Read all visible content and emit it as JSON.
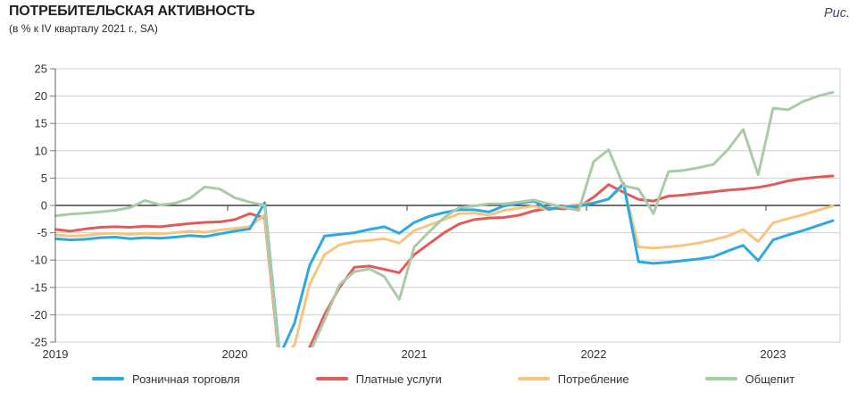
{
  "header": {
    "title": "ПОТРЕБИТЕЛЬСКАЯ АКТИВНОСТЬ",
    "subtitle": "(в % к IV кварталу 2021 г., SA)",
    "figure_label": "Рис."
  },
  "chart_data": {
    "type": "line",
    "title": "ПОТРЕБИТЕЛЬСКАЯ АКТИВНОСТЬ",
    "subtitle": "(в % к IV кварталу 2021 г., SA)",
    "x_unit": "month",
    "months_start": "2019-01",
    "months_end": "2023-05",
    "x_tick_labels": [
      "2019",
      "2020",
      "2021",
      "2022",
      "2023"
    ],
    "x_tick_month_indices": [
      0,
      12,
      24,
      36,
      48
    ],
    "ylim": [
      -25,
      25
    ],
    "y_tick_step": 5,
    "grid": true,
    "legend_position": "bottom",
    "zero_line": true,
    "series": [
      {
        "name": "Розничная торговля",
        "color": "#2BA9E0",
        "values": [
          -6.1,
          -6.3,
          -6.2,
          -5.9,
          -5.8,
          -6.1,
          -5.9,
          -6.0,
          -5.8,
          -5.5,
          -5.7,
          -5.2,
          -4.7,
          -4.3,
          0.5,
          -27.5,
          -21.5,
          -11.0,
          -5.6,
          -5.3,
          -5.0,
          -4.4,
          -3.9,
          -5.1,
          -3.1,
          -2.0,
          -1.3,
          -0.8,
          -0.8,
          -1.2,
          -0.1,
          0.4,
          0.8,
          -0.7,
          -0.3,
          -0.1,
          0.4,
          1.2,
          4.0,
          -10.3,
          -10.6,
          -10.4,
          -10.1,
          -9.8,
          -9.4,
          -8.3,
          -7.3,
          -10.1,
          -6.3,
          -5.4,
          -4.6,
          -3.7,
          -2.8
        ]
      },
      {
        "name": "Платные услуги",
        "color": "#E25B5B",
        "values": [
          -4.4,
          -4.7,
          -4.3,
          -4.0,
          -3.9,
          -4.0,
          -3.8,
          -3.9,
          -3.6,
          -3.3,
          -3.1,
          -3.0,
          -2.6,
          -1.5,
          -2.3,
          -29.0,
          -29.0,
          -26.0,
          -20.0,
          -15.0,
          -11.3,
          -11.1,
          -11.7,
          -12.3,
          -9.0,
          -7.0,
          -5.0,
          -3.4,
          -2.6,
          -2.3,
          -2.2,
          -1.8,
          -1.0,
          -0.5,
          -0.6,
          -0.3,
          1.5,
          3.8,
          2.4,
          1.1,
          0.8,
          1.7,
          1.9,
          2.2,
          2.5,
          2.8,
          3.0,
          3.3,
          3.8,
          4.5,
          4.9,
          5.2,
          5.4
        ]
      },
      {
        "name": "Потребление",
        "color": "#F7C57E",
        "values": [
          -5.4,
          -5.6,
          -5.5,
          -5.2,
          -5.1,
          -5.3,
          -5.1,
          -5.2,
          -5.0,
          -4.7,
          -4.9,
          -4.5,
          -4.2,
          -3.9,
          -1.7,
          -28.5,
          -25.5,
          -14.5,
          -9.0,
          -7.2,
          -6.6,
          -6.4,
          -6.1,
          -6.9,
          -4.6,
          -3.6,
          -2.6,
          -1.5,
          -1.4,
          -1.8,
          -0.9,
          -0.5,
          -0.1,
          -0.8,
          -0.2,
          0.2,
          0.5,
          1.1,
          3.7,
          -7.6,
          -7.8,
          -7.6,
          -7.3,
          -6.9,
          -6.3,
          -5.6,
          -4.4,
          -6.6,
          -3.2,
          -2.4,
          -1.7,
          -0.9,
          -0.1
        ]
      },
      {
        "name": "Общепит",
        "color": "#A9CBA6",
        "values": [
          -1.9,
          -1.6,
          -1.4,
          -1.2,
          -0.9,
          -0.4,
          0.9,
          0.1,
          0.4,
          1.3,
          3.4,
          3.0,
          1.4,
          0.6,
          0.0,
          -28.0,
          -30.0,
          -27.0,
          -21.0,
          -14.5,
          -12.1,
          -11.6,
          -13.0,
          -17.2,
          -7.6,
          -4.8,
          -2.2,
          -0.4,
          -0.1,
          0.3,
          0.3,
          0.6,
          1.0,
          0.3,
          -0.4,
          -0.9,
          8.0,
          10.2,
          3.6,
          3.0,
          -1.5,
          6.2,
          6.4,
          6.9,
          7.5,
          10.3,
          13.9,
          5.6,
          17.8,
          17.5,
          19.0,
          20.0,
          20.7
        ]
      }
    ],
    "colors": {
      "grid": "#CFCFCF",
      "zero_line": "#1A1A1A",
      "axis": "#7A7A7A",
      "text": "#333333"
    }
  }
}
